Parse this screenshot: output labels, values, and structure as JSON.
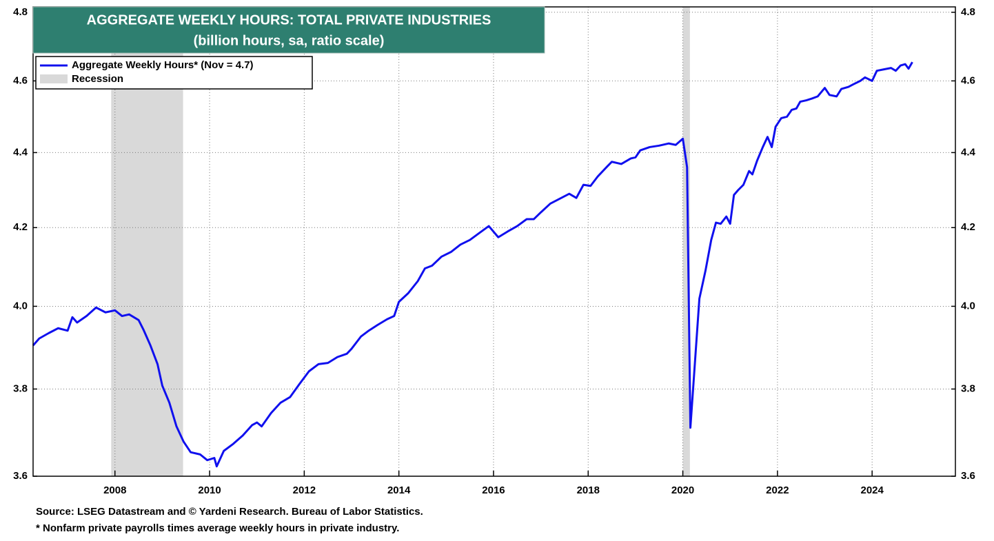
{
  "chart_data": {
    "type": "line",
    "title": "AGGREGATE WEEKLY HOURS: TOTAL PRIVATE INDUSTRIES",
    "subtitle": "(billion hours, sa, ratio scale)",
    "source": "Source: LSEG Datastream and © Yardeni Research. Bureau of Labor Statistics.",
    "note": "* Nonfarm private payrolls times average weekly hours in private industry.",
    "log_scale": true,
    "grid": true,
    "legend": "upper left",
    "x": [
      2006.27,
      2006.4,
      2006.6,
      2006.8,
      2007.0,
      2007.1,
      2007.2,
      2007.4,
      2007.6,
      2007.8,
      2008.0,
      2008.15,
      2008.3,
      2008.5,
      2008.6,
      2008.75,
      2008.9,
      2009.0,
      2009.15,
      2009.3,
      2009.45,
      2009.6,
      2009.8,
      2009.95,
      2010.1,
      2010.15,
      2010.3,
      2010.5,
      2010.7,
      2010.9,
      2011.0,
      2011.1,
      2011.3,
      2011.5,
      2011.7,
      2011.9,
      2012.1,
      2012.3,
      2012.5,
      2012.7,
      2012.9,
      2013.0,
      2013.2,
      2013.35,
      2013.55,
      2013.75,
      2013.9,
      2014.0,
      2014.2,
      2014.4,
      2014.55,
      2014.7,
      2014.9,
      2015.1,
      2015.3,
      2015.5,
      2015.7,
      2015.9,
      2016.1,
      2016.3,
      2016.5,
      2016.7,
      2016.85,
      2017.0,
      2017.2,
      2017.4,
      2017.6,
      2017.75,
      2017.9,
      2018.05,
      2018.2,
      2018.4,
      2018.5,
      2018.7,
      2018.9,
      2019.0,
      2019.1,
      2019.3,
      2019.5,
      2019.7,
      2019.85,
      2020.0,
      2020.09,
      2020.16,
      2020.35,
      2020.48,
      2020.6,
      2020.7,
      2020.8,
      2020.92,
      2021.0,
      2021.08,
      2021.17,
      2021.28,
      2021.4,
      2021.47,
      2021.57,
      2021.69,
      2021.79,
      2021.88,
      2021.96,
      2022.08,
      2022.2,
      2022.3,
      2022.4,
      2022.48,
      2022.61,
      2022.73,
      2022.85,
      2023.0,
      2023.1,
      2023.25,
      2023.35,
      2023.5,
      2023.6,
      2023.75,
      2023.85,
      2024.0,
      2024.1,
      2024.25,
      2024.4,
      2024.5,
      2024.6,
      2024.7,
      2024.77,
      2024.85
    ],
    "series": [
      {
        "name": "Aggregate Weekly Hours* (Nov = 4.7)",
        "color": "#1010ee",
        "values": [
          3.904,
          3.921,
          3.934,
          3.946,
          3.94,
          3.973,
          3.96,
          3.976,
          3.997,
          3.985,
          3.99,
          3.976,
          3.98,
          3.966,
          3.943,
          3.904,
          3.859,
          3.808,
          3.768,
          3.713,
          3.678,
          3.654,
          3.649,
          3.636,
          3.641,
          3.622,
          3.657,
          3.673,
          3.692,
          3.716,
          3.722,
          3.713,
          3.744,
          3.768,
          3.781,
          3.812,
          3.842,
          3.859,
          3.862,
          3.876,
          3.884,
          3.896,
          3.926,
          3.939,
          3.954,
          3.968,
          3.976,
          4.011,
          4.033,
          4.063,
          4.095,
          4.102,
          4.125,
          4.137,
          4.156,
          4.168,
          4.186,
          4.204,
          4.175,
          4.19,
          4.204,
          4.222,
          4.222,
          4.24,
          4.263,
          4.276,
          4.289,
          4.278,
          4.313,
          4.31,
          4.335,
          4.362,
          4.375,
          4.369,
          4.384,
          4.387,
          4.406,
          4.415,
          4.419,
          4.425,
          4.421,
          4.438,
          4.36,
          3.71,
          4.019,
          4.09,
          4.168,
          4.213,
          4.21,
          4.229,
          4.21,
          4.286,
          4.299,
          4.313,
          4.35,
          4.341,
          4.378,
          4.415,
          4.443,
          4.415,
          4.471,
          4.495,
          4.499,
          4.518,
          4.522,
          4.541,
          4.545,
          4.55,
          4.556,
          4.58,
          4.56,
          4.556,
          4.577,
          4.583,
          4.59,
          4.6,
          4.61,
          4.6,
          4.629,
          4.633,
          4.637,
          4.629,
          4.644,
          4.648,
          4.635,
          4.654
        ]
      }
    ],
    "recessions": {
      "name": "Recession",
      "color": "#d9d9d9",
      "ranges": [
        [
          2007.92,
          2009.44
        ],
        [
          2020.0,
          2020.15
        ]
      ]
    },
    "xlim": [
      2006.27,
      2025.76
    ],
    "xticks": [
      2008,
      2010,
      2012,
      2014,
      2016,
      2018,
      2020,
      2022,
      2024
    ],
    "ylim": [
      3.6,
      4.816
    ],
    "yticks": [
      3.6,
      3.8,
      {
        "value": 4,
        "label": "4.0"
      },
      4.2,
      4.4,
      4.6,
      4.8
    ]
  }
}
